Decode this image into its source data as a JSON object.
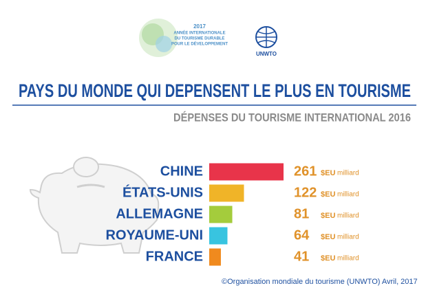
{
  "logo": {
    "year": "2017",
    "lines": [
      "ANNÉE INTERNATIONALE",
      "DU TOURISME DURABLE",
      "POUR LE DÉVELOPPEMENT"
    ],
    "org": "UNWTO"
  },
  "chart_data": {
    "type": "bar",
    "orientation": "horizontal",
    "title": "PAYS DU MONDE QUI DEPENSENT LE PLUS EN TOURISME",
    "subtitle": "DÉPENSES DU TOURISME INTERNATIONAL 2016",
    "categories": [
      "CHINE",
      "ÉTATS-UNIS",
      "ALLEMAGNE",
      "ROYAUME-UNI",
      "FRANCE"
    ],
    "values": [
      261,
      122,
      81,
      64,
      41
    ],
    "colors": [
      "#e8344a",
      "#f0b428",
      "#a4cc3c",
      "#38c4e0",
      "#f08a1e"
    ],
    "value_unit": "$EU",
    "value_scale": "milliard"
  },
  "source": "©Organisation mondiale du tourisme (UNWTO) Avril, 2017"
}
